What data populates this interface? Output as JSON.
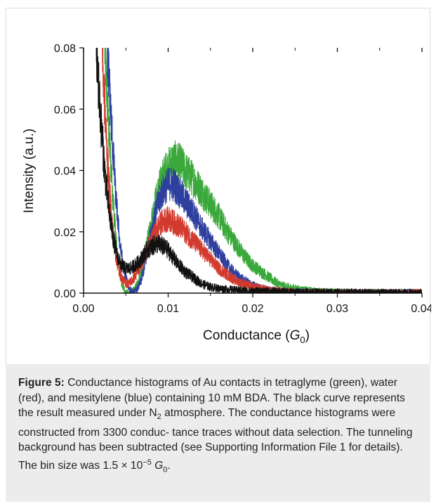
{
  "chart_data": {
    "type": "line",
    "title": "",
    "xlabel_prefix": "Conductance (",
    "xlabel_symbol": "G",
    "xlabel_sub": "0",
    "xlabel_suffix": ")",
    "ylabel": "Intensity (a.u.)",
    "xlim": [
      0.0,
      0.04
    ],
    "ylim": [
      0.0,
      0.08
    ],
    "xticks": [
      "0.00",
      "0.01",
      "0.02",
      "0.03",
      "0.04"
    ],
    "yticks": [
      "0.00",
      "0.02",
      "0.04",
      "0.06",
      "0.08"
    ],
    "grid": false,
    "legend": "none",
    "series": [
      {
        "color": "#3aa83a",
        "points": [
          [
            0.0025,
            0.08
          ],
          [
            0.003,
            0.052
          ],
          [
            0.0035,
            0.03
          ],
          [
            0.004,
            0.012
          ],
          [
            0.0045,
            0.003
          ],
          [
            0.005,
            0.0
          ],
          [
            0.0055,
            0.0
          ],
          [
            0.006,
            0.001
          ],
          [
            0.0065,
            0.004
          ],
          [
            0.007,
            0.009
          ],
          [
            0.0075,
            0.016
          ],
          [
            0.008,
            0.023
          ],
          [
            0.0085,
            0.03
          ],
          [
            0.009,
            0.035
          ],
          [
            0.0095,
            0.039
          ],
          [
            0.01,
            0.041
          ],
          [
            0.0105,
            0.043
          ],
          [
            0.011,
            0.043
          ],
          [
            0.0115,
            0.042
          ],
          [
            0.012,
            0.04
          ],
          [
            0.013,
            0.037
          ],
          [
            0.014,
            0.033
          ],
          [
            0.015,
            0.029
          ],
          [
            0.016,
            0.025
          ],
          [
            0.017,
            0.02
          ],
          [
            0.018,
            0.016
          ],
          [
            0.019,
            0.012
          ],
          [
            0.02,
            0.009
          ],
          [
            0.021,
            0.007
          ],
          [
            0.022,
            0.005
          ],
          [
            0.023,
            0.003
          ],
          [
            0.024,
            0.002
          ],
          [
            0.025,
            0.0015
          ],
          [
            0.026,
            0.001
          ],
          [
            0.028,
            0.0005
          ],
          [
            0.03,
            0.0003
          ],
          [
            0.032,
            0.0002
          ],
          [
            0.034,
            0.0002
          ],
          [
            0.036,
            0.0001
          ],
          [
            0.038,
            0.0001
          ],
          [
            0.04,
            0.0001
          ]
        ]
      },
      {
        "color": "#2f3f9e",
        "points": [
          [
            0.0028,
            0.08
          ],
          [
            0.0033,
            0.055
          ],
          [
            0.0038,
            0.032
          ],
          [
            0.0043,
            0.016
          ],
          [
            0.0048,
            0.007
          ],
          [
            0.0053,
            0.002
          ],
          [
            0.0058,
            0.0
          ],
          [
            0.0063,
            0.001
          ],
          [
            0.0068,
            0.004
          ],
          [
            0.0073,
            0.01
          ],
          [
            0.0078,
            0.017
          ],
          [
            0.0083,
            0.024
          ],
          [
            0.0088,
            0.029
          ],
          [
            0.0093,
            0.033
          ],
          [
            0.0098,
            0.035
          ],
          [
            0.0103,
            0.036
          ],
          [
            0.0108,
            0.035
          ],
          [
            0.0113,
            0.033
          ],
          [
            0.012,
            0.03
          ],
          [
            0.013,
            0.026
          ],
          [
            0.014,
            0.021
          ],
          [
            0.015,
            0.017
          ],
          [
            0.016,
            0.013
          ],
          [
            0.017,
            0.009
          ],
          [
            0.018,
            0.006
          ],
          [
            0.019,
            0.004
          ],
          [
            0.02,
            0.0025
          ],
          [
            0.021,
            0.0015
          ],
          [
            0.022,
            0.001
          ],
          [
            0.024,
            0.0005
          ],
          [
            0.026,
            0.0003
          ],
          [
            0.028,
            0.0002
          ],
          [
            0.03,
            0.0001
          ],
          [
            0.035,
            0.0001
          ],
          [
            0.04,
            0.0001
          ]
        ]
      },
      {
        "color": "#d23a2e",
        "points": [
          [
            0.0022,
            0.08
          ],
          [
            0.0027,
            0.05
          ],
          [
            0.0032,
            0.028
          ],
          [
            0.0037,
            0.014
          ],
          [
            0.0042,
            0.007
          ],
          [
            0.0047,
            0.004
          ],
          [
            0.0052,
            0.003
          ],
          [
            0.0057,
            0.004
          ],
          [
            0.0062,
            0.006
          ],
          [
            0.0067,
            0.009
          ],
          [
            0.0072,
            0.012
          ],
          [
            0.0077,
            0.015
          ],
          [
            0.0082,
            0.018
          ],
          [
            0.0087,
            0.021
          ],
          [
            0.0092,
            0.023
          ],
          [
            0.0097,
            0.024
          ],
          [
            0.0102,
            0.024
          ],
          [
            0.0107,
            0.023
          ],
          [
            0.0112,
            0.022
          ],
          [
            0.012,
            0.02
          ],
          [
            0.013,
            0.017
          ],
          [
            0.014,
            0.014
          ],
          [
            0.015,
            0.011
          ],
          [
            0.016,
            0.008
          ],
          [
            0.017,
            0.006
          ],
          [
            0.018,
            0.004
          ],
          [
            0.019,
            0.003
          ],
          [
            0.02,
            0.002
          ],
          [
            0.022,
            0.001
          ],
          [
            0.024,
            0.0005
          ],
          [
            0.026,
            0.0003
          ],
          [
            0.03,
            0.0002
          ],
          [
            0.035,
            0.0001
          ],
          [
            0.04,
            0.0001
          ]
        ]
      },
      {
        "color": "#111111",
        "points": [
          [
            0.0015,
            0.08
          ],
          [
            0.002,
            0.058
          ],
          [
            0.0025,
            0.04
          ],
          [
            0.003,
            0.027
          ],
          [
            0.0035,
            0.018
          ],
          [
            0.004,
            0.012
          ],
          [
            0.0045,
            0.009
          ],
          [
            0.005,
            0.008
          ],
          [
            0.0055,
            0.008
          ],
          [
            0.006,
            0.009
          ],
          [
            0.0065,
            0.01
          ],
          [
            0.007,
            0.012
          ],
          [
            0.0075,
            0.014
          ],
          [
            0.008,
            0.015
          ],
          [
            0.0085,
            0.016
          ],
          [
            0.009,
            0.016
          ],
          [
            0.0095,
            0.015
          ],
          [
            0.01,
            0.014
          ],
          [
            0.0105,
            0.012
          ],
          [
            0.011,
            0.01
          ],
          [
            0.012,
            0.007
          ],
          [
            0.013,
            0.005
          ],
          [
            0.014,
            0.003
          ],
          [
            0.015,
            0.002
          ],
          [
            0.016,
            0.0015
          ],
          [
            0.018,
            0.001
          ],
          [
            0.02,
            0.0007
          ],
          [
            0.025,
            0.0004
          ],
          [
            0.03,
            0.0003
          ],
          [
            0.035,
            0.0002
          ],
          [
            0.04,
            0.0002
          ]
        ]
      }
    ]
  },
  "caption": {
    "label": "Figure 5:",
    "text_part1": " Conductance histograms of Au contacts in tetraglyme (green), water (red), and mesitylene (blue) containing 10 mM BDA. The black curve represents the result measured under N",
    "n2_sub": "2",
    "text_part2": " atmosphere. The conductance histograms were constructed from 3300 conduc- tance traces without data selection. The tunneling background has been subtracted (see Supporting Information File 1 for details). The bin size was 1.5 × 10",
    "exp_sup": "−5",
    "g_symbol": "G",
    "g_sub": "0",
    "text_end": "."
  }
}
